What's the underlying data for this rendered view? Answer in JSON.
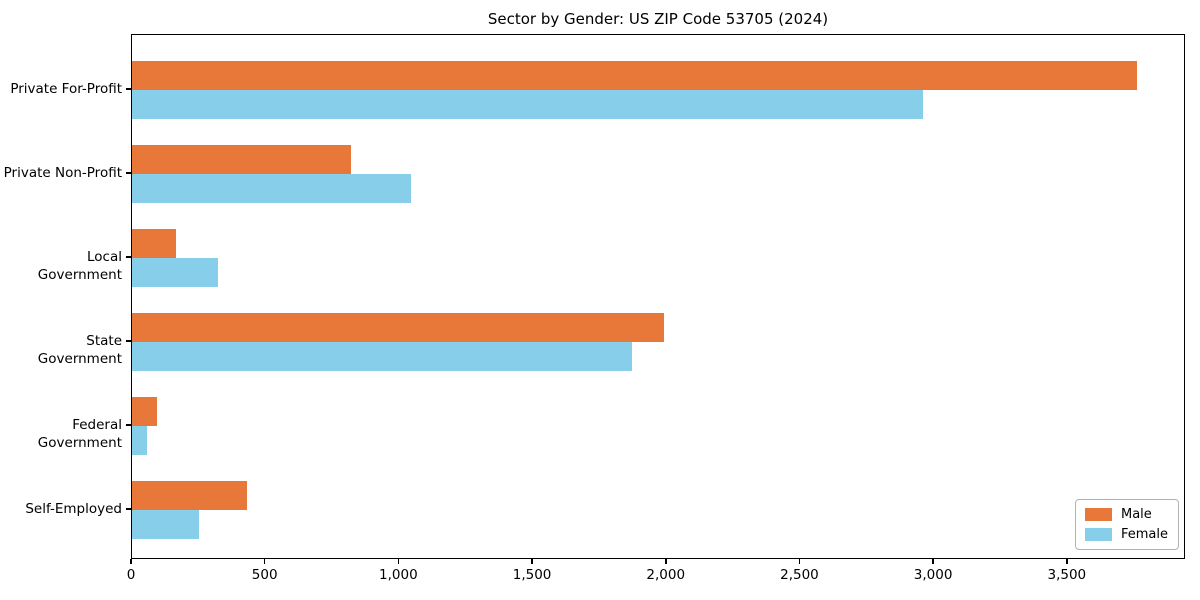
{
  "chart_data": {
    "type": "bar",
    "orientation": "horizontal",
    "title": "Sector by Gender: US ZIP Code 53705 (2024)",
    "categories": [
      "Private For-Profit",
      "Private Non-Profit",
      "Local Government",
      "State Government",
      "Federal Government",
      "Self-Employed"
    ],
    "series": [
      {
        "name": "Male",
        "color": "#E87839",
        "values": [
          3760,
          820,
          165,
          1990,
          95,
          430
        ]
      },
      {
        "name": "Female",
        "color": "#87CEEB",
        "values": [
          2960,
          1045,
          320,
          1870,
          55,
          250
        ]
      }
    ],
    "xlim": [
      0,
      3942
    ],
    "x_ticks": [
      0,
      500,
      1000,
      1500,
      2000,
      2500,
      3000,
      3500
    ],
    "x_tick_labels": [
      "0",
      "500",
      "1,000",
      "1,500",
      "2,000",
      "2,500",
      "3,000",
      "3,500"
    ],
    "xlabel": "",
    "ylabel": "",
    "grid": false,
    "legend_position": "lower right"
  }
}
